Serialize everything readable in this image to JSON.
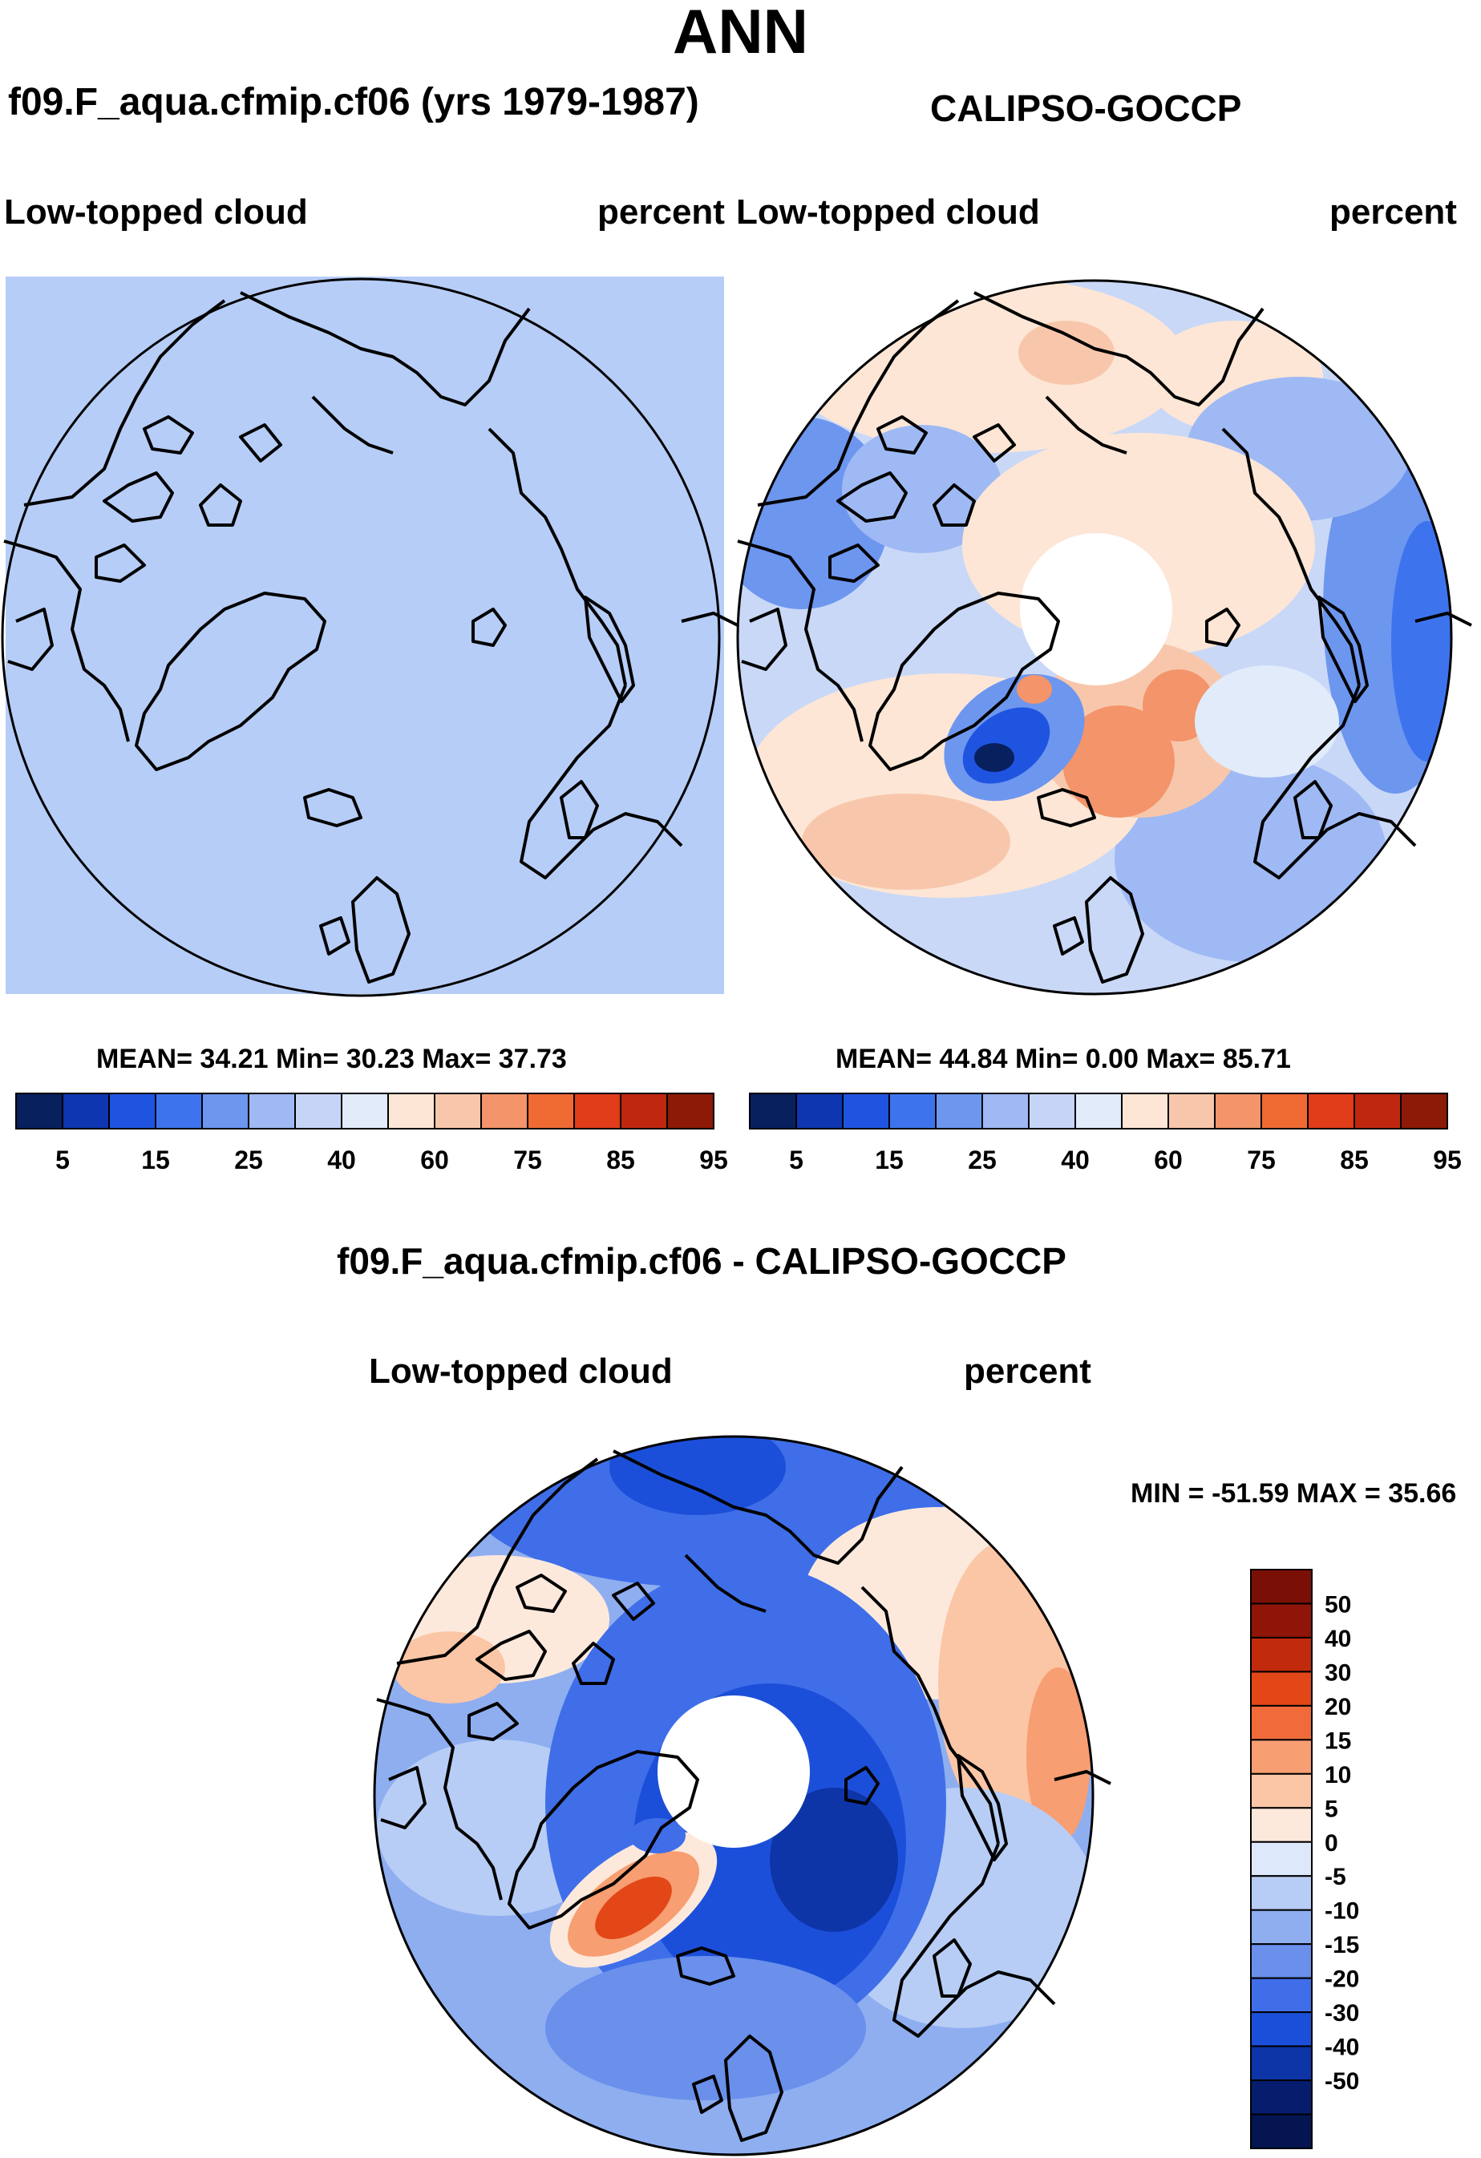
{
  "chart_data": [
    {
      "type": "heatmap",
      "title": "f09.F_aqua.cfmip.cf06 (yrs 1979-1987)",
      "variable": "Low-topped cloud",
      "units": "percent",
      "projection": "north polar stereographic",
      "stats": "MEAN=  34.21  Min=  30.23  Max=  37.73",
      "mean": 34.21,
      "min": 30.23,
      "max": 37.73,
      "colorbar_labels": [
        "5",
        "15",
        "25",
        "40",
        "60",
        "75",
        "85",
        "95"
      ],
      "colorbar_colors": [
        "#08205e",
        "#0e36b0",
        "#1e54e0",
        "#3d74ee",
        "#6d96ef",
        "#9fb9f4",
        "#c6d5f7",
        "#e1ebfa",
        "#fde6d6",
        "#f8c7ab",
        "#f4946a",
        "#f06a34",
        "#e03c1a",
        "#c0270f",
        "#8c1a07"
      ],
      "field_color": "#b6cdf7"
    },
    {
      "type": "heatmap",
      "title": "CALIPSO-GOCCP",
      "variable": "Low-topped cloud",
      "units": "percent",
      "projection": "north polar stereographic",
      "stats": "MEAN=  44.84  Min=   0.00  Max=  85.71",
      "mean": 44.84,
      "min": 0.0,
      "max": 85.71,
      "colorbar_labels": [
        "5",
        "15",
        "25",
        "40",
        "60",
        "75",
        "85",
        "95"
      ]
    },
    {
      "type": "heatmap",
      "title": "f09.F_aqua.cfmip.cf06 - CALIPSO-GOCCP",
      "variable": "Low-topped cloud",
      "units": "percent",
      "projection": "north polar stereographic",
      "minmax": "MIN = -51.59 MAX =  35.66",
      "min": -51.59,
      "max": 35.66,
      "colorbar_labels": [
        "50",
        "40",
        "30",
        "20",
        "15",
        "10",
        "5",
        "0",
        "-5",
        "-10",
        "-15",
        "-20",
        "-30",
        "-40",
        "-50"
      ],
      "colorbar_colors": [
        "#8e1507",
        "#c22a0e",
        "#e34717",
        "#f06b39",
        "#f79e72",
        "#fbc6a6",
        "#fde9dc",
        "#dde8fb",
        "#b7cdf6",
        "#8eaef0",
        "#6a90ec",
        "#3f6ee8",
        "#1c4fd9",
        "#0d35a8",
        "#061d6e"
      ]
    }
  ],
  "page": {
    "main_title": "ANN"
  }
}
